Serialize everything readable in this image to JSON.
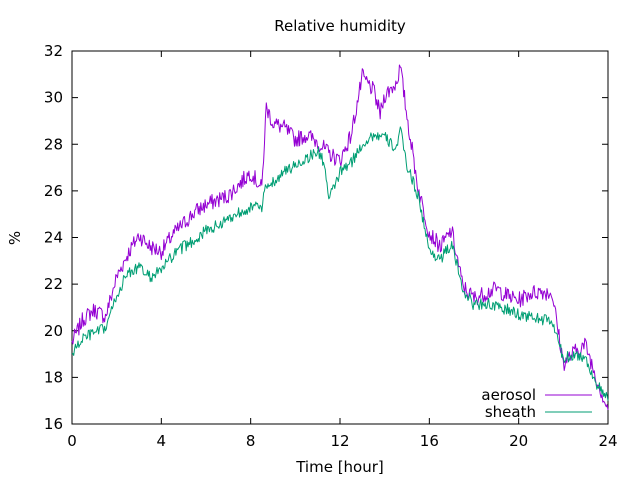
{
  "chart_data": {
    "type": "line",
    "title": "Relative humidity",
    "xlabel": "Time [hour]",
    "ylabel": "%",
    "xlim": [
      0,
      24
    ],
    "ylim": [
      16,
      32
    ],
    "x_ticks": [
      0,
      4,
      8,
      12,
      16,
      20,
      24
    ],
    "y_ticks": [
      16,
      18,
      20,
      22,
      24,
      26,
      28,
      30,
      32
    ],
    "legend_position": "bottom-right",
    "grid": false,
    "series": [
      {
        "name": "aerosol",
        "color": "#9400d3",
        "x": [
          0,
          0.5,
          1,
          1.5,
          2,
          2.5,
          3,
          3.5,
          4,
          4.5,
          5,
          5.5,
          6,
          6.5,
          7,
          7.5,
          8,
          8.5,
          8.7,
          9,
          9.5,
          10,
          10.5,
          11,
          11.5,
          12,
          12.5,
          13,
          13.5,
          13.8,
          14,
          14.5,
          14.7,
          15,
          15.5,
          16,
          16.5,
          17,
          17.5,
          18,
          18.5,
          19,
          19.5,
          20,
          20.5,
          21,
          21.5,
          22,
          22.5,
          23,
          23.5,
          24
        ],
        "y": [
          19.5,
          20.5,
          20.9,
          20.6,
          22.3,
          23.3,
          24.1,
          23.6,
          23.4,
          24.1,
          24.6,
          25.1,
          25.4,
          25.6,
          25.8,
          26.3,
          26.8,
          26.1,
          29.6,
          28.9,
          28.7,
          28.2,
          28.4,
          28.1,
          27.6,
          27.3,
          28.4,
          30.9,
          30.3,
          29.3,
          30.1,
          30.6,
          31.3,
          29.2,
          26.1,
          24.2,
          23.6,
          24.3,
          21.9,
          21.4,
          21.6,
          21.8,
          21.5,
          21.3,
          21.6,
          21.7,
          21.6,
          18.6,
          19.1,
          19.4,
          17.9,
          16.6
        ]
      },
      {
        "name": "sheath",
        "color": "#009e73",
        "x": [
          0,
          0.5,
          1,
          1.5,
          2,
          2.5,
          3,
          3.5,
          4,
          4.5,
          5,
          5.5,
          6,
          6.5,
          7,
          7.5,
          8,
          8.5,
          8.7,
          9,
          9.5,
          10,
          10.5,
          11,
          11.3,
          11.5,
          12,
          12.5,
          13,
          13.5,
          14,
          14.5,
          14.7,
          15,
          15.5,
          16,
          16.5,
          17,
          17.5,
          18,
          18.5,
          19,
          19.5,
          20,
          20.5,
          21,
          21.5,
          22,
          22.5,
          23,
          23.5,
          24
        ],
        "y": [
          19.0,
          19.7,
          19.9,
          20.1,
          21.5,
          22.5,
          22.7,
          22.3,
          22.6,
          23.2,
          23.6,
          23.9,
          24.3,
          24.5,
          24.8,
          25.1,
          25.3,
          25.3,
          26.2,
          26.4,
          26.8,
          27.1,
          27.4,
          27.7,
          27.2,
          25.6,
          26.8,
          27.2,
          28.0,
          28.4,
          28.3,
          27.8,
          28.6,
          27.1,
          25.8,
          23.4,
          23.1,
          23.7,
          21.8,
          21.1,
          21.2,
          21.0,
          20.9,
          20.7,
          20.6,
          20.5,
          20.4,
          18.8,
          19.0,
          18.8,
          17.7,
          17.0
        ]
      }
    ]
  }
}
